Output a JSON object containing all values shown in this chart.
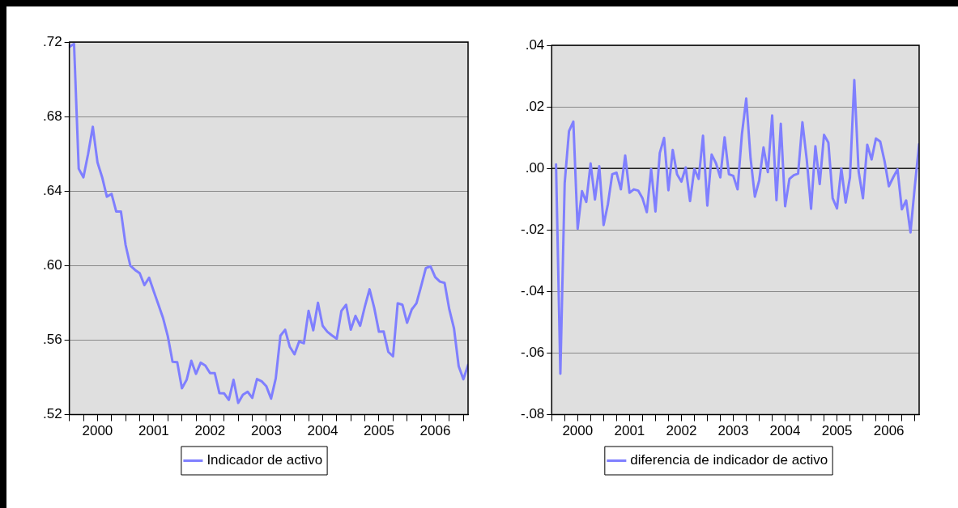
{
  "chart_data": [
    {
      "type": "line",
      "xlim": [
        "2000-01",
        "2007-02"
      ],
      "ylim": [
        0.52,
        0.72
      ],
      "yticks": [
        {
          "value": 0.52,
          "label": ".52"
        },
        {
          "value": 0.56,
          "label": ".56"
        },
        {
          "value": 0.6,
          "label": ".60"
        },
        {
          "value": 0.64,
          "label": ".64"
        },
        {
          "value": 0.68,
          "label": ".68"
        },
        {
          "value": 0.72,
          "label": ".72"
        }
      ],
      "xticks": [
        {
          "value": "2000-01",
          "label": null
        },
        {
          "value": "2000-04",
          "label": null
        },
        {
          "value": "2000-07",
          "label": "2000"
        },
        {
          "value": "2000-10",
          "label": null
        },
        {
          "value": "2001-01",
          "label": null
        },
        {
          "value": "2001-04",
          "label": null
        },
        {
          "value": "2001-07",
          "label": "2001"
        },
        {
          "value": "2001-10",
          "label": null
        },
        {
          "value": "2002-01",
          "label": null
        },
        {
          "value": "2002-04",
          "label": null
        },
        {
          "value": "2002-07",
          "label": "2002"
        },
        {
          "value": "2002-10",
          "label": null
        },
        {
          "value": "2003-01",
          "label": null
        },
        {
          "value": "2003-04",
          "label": null
        },
        {
          "value": "2003-07",
          "label": "2003"
        },
        {
          "value": "2003-10",
          "label": null
        },
        {
          "value": "2004-01",
          "label": null
        },
        {
          "value": "2004-04",
          "label": null
        },
        {
          "value": "2004-07",
          "label": "2004"
        },
        {
          "value": "2004-10",
          "label": null
        },
        {
          "value": "2005-01",
          "label": null
        },
        {
          "value": "2005-04",
          "label": null
        },
        {
          "value": "2005-07",
          "label": "2005"
        },
        {
          "value": "2005-10",
          "label": null
        },
        {
          "value": "2006-01",
          "label": null
        },
        {
          "value": "2006-04",
          "label": null
        },
        {
          "value": "2006-07",
          "label": "2006"
        },
        {
          "value": "2006-10",
          "label": null
        },
        {
          "value": "2007-01",
          "label": null
        }
      ],
      "grid": "y",
      "legend": "bottom",
      "marker": "none",
      "line_style": "solid",
      "series": [
        {
          "name": "Indicador de activo",
          "color": "#7f7fff",
          "x": [
            "2000-01",
            "2000-02",
            "2000-03",
            "2000-04",
            "2000-05",
            "2000-06",
            "2000-07",
            "2000-08",
            "2000-09",
            "2000-10",
            "2000-11",
            "2000-12",
            "2001-01",
            "2001-02",
            "2001-03",
            "2001-04",
            "2001-05",
            "2001-06",
            "2001-07",
            "2001-08",
            "2001-09",
            "2001-10",
            "2001-11",
            "2001-12",
            "2002-01",
            "2002-02",
            "2002-03",
            "2002-04",
            "2002-05",
            "2002-06",
            "2002-07",
            "2002-08",
            "2002-09",
            "2002-10",
            "2002-11",
            "2002-12",
            "2003-01",
            "2003-02",
            "2003-03",
            "2003-04",
            "2003-05",
            "2003-06",
            "2003-07",
            "2003-08",
            "2003-09",
            "2003-10",
            "2003-11",
            "2003-12",
            "2004-01",
            "2004-02",
            "2004-03",
            "2004-04",
            "2004-05",
            "2004-06",
            "2004-07",
            "2004-08",
            "2004-09",
            "2004-10",
            "2004-11",
            "2004-12",
            "2005-01",
            "2005-02",
            "2005-03",
            "2005-04",
            "2005-05",
            "2005-06",
            "2005-07",
            "2005-08",
            "2005-09",
            "2005-10",
            "2005-11",
            "2005-12",
            "2006-01",
            "2006-02",
            "2006-03",
            "2006-04",
            "2006-05",
            "2006-06",
            "2006-07",
            "2006-08",
            "2006-09",
            "2006-10",
            "2006-11",
            "2006-12",
            "2007-01",
            "2007-02"
          ],
          "values": [
            0.7174,
            0.719,
            0.652,
            0.6474,
            0.66,
            0.6745,
            0.6554,
            0.6474,
            0.637,
            0.6385,
            0.629,
            0.629,
            0.611,
            0.6,
            0.5977,
            0.5959,
            0.5895,
            0.5935,
            0.5862,
            0.579,
            0.5717,
            0.562,
            0.5484,
            0.5482,
            0.5342,
            0.5387,
            0.5489,
            0.5419,
            0.5479,
            0.5463,
            0.5423,
            0.5423,
            0.5315,
            0.5314,
            0.5279,
            0.5387,
            0.5263,
            0.5307,
            0.5323,
            0.529,
            0.5391,
            0.5379,
            0.5352,
            0.5286,
            0.5394,
            0.5624,
            0.5656,
            0.5564,
            0.5524,
            0.5593,
            0.5583,
            0.5757,
            0.5653,
            0.5801,
            0.5677,
            0.5645,
            0.5625,
            0.5608,
            0.5757,
            0.579,
            0.5656,
            0.573,
            0.5677,
            0.5781,
            0.5873,
            0.5773,
            0.5645,
            0.5647,
            0.5537,
            0.5513,
            0.5798,
            0.579,
            0.5693,
            0.5765,
            0.5798,
            0.589,
            0.5987,
            0.5996,
            0.5938,
            0.5914,
            0.5907,
            0.5765,
            0.5663,
            0.546,
            0.539,
            0.5467
          ]
        }
      ]
    },
    {
      "type": "line",
      "xlim": [
        "2000-01",
        "2007-02"
      ],
      "ylim": [
        -0.08,
        0.04
      ],
      "yticks": [
        {
          "value": -0.08,
          "label": "-.08"
        },
        {
          "value": -0.06,
          "label": "-.06"
        },
        {
          "value": -0.04,
          "label": "-.04"
        },
        {
          "value": -0.02,
          "label": "-.02"
        },
        {
          "value": 0,
          "label": ".00"
        },
        {
          "value": 0.02,
          "label": ".02"
        },
        {
          "value": 0.04,
          "label": ".04"
        }
      ],
      "xticks": [
        {
          "value": "2000-01",
          "label": null
        },
        {
          "value": "2000-04",
          "label": null
        },
        {
          "value": "2000-07",
          "label": "2000"
        },
        {
          "value": "2000-10",
          "label": null
        },
        {
          "value": "2001-01",
          "label": null
        },
        {
          "value": "2001-04",
          "label": null
        },
        {
          "value": "2001-07",
          "label": "2001"
        },
        {
          "value": "2001-10",
          "label": null
        },
        {
          "value": "2002-01",
          "label": null
        },
        {
          "value": "2002-04",
          "label": null
        },
        {
          "value": "2002-07",
          "label": "2002"
        },
        {
          "value": "2002-10",
          "label": null
        },
        {
          "value": "2003-01",
          "label": null
        },
        {
          "value": "2003-04",
          "label": null
        },
        {
          "value": "2003-07",
          "label": "2003"
        },
        {
          "value": "2003-10",
          "label": null
        },
        {
          "value": "2004-01",
          "label": null
        },
        {
          "value": "2004-04",
          "label": null
        },
        {
          "value": "2004-07",
          "label": "2004"
        },
        {
          "value": "2004-10",
          "label": null
        },
        {
          "value": "2005-01",
          "label": null
        },
        {
          "value": "2005-04",
          "label": null
        },
        {
          "value": "2005-07",
          "label": "2005"
        },
        {
          "value": "2005-10",
          "label": null
        },
        {
          "value": "2006-01",
          "label": null
        },
        {
          "value": "2006-04",
          "label": null
        },
        {
          "value": "2006-07",
          "label": "2006"
        },
        {
          "value": "2006-10",
          "label": null
        },
        {
          "value": "2007-01",
          "label": null
        }
      ],
      "grid": "y",
      "legend": "bottom",
      "marker": "none",
      "line_style": "solid",
      "ref_lines": [
        {
          "axis": "y",
          "value": 0,
          "color": "#000000"
        }
      ],
      "series": [
        {
          "name": "diferencia de indicador de activo",
          "color": "#7f7fff",
          "x": [
            "2000-02",
            "2000-03",
            "2000-04",
            "2000-05",
            "2000-06",
            "2000-07",
            "2000-08",
            "2000-09",
            "2000-10",
            "2000-11",
            "2000-12",
            "2001-01",
            "2001-02",
            "2001-03",
            "2001-04",
            "2001-05",
            "2001-06",
            "2001-07",
            "2001-08",
            "2001-09",
            "2001-10",
            "2001-11",
            "2001-12",
            "2002-01",
            "2002-02",
            "2002-03",
            "2002-04",
            "2002-05",
            "2002-06",
            "2002-07",
            "2002-08",
            "2002-09",
            "2002-10",
            "2002-11",
            "2002-12",
            "2003-01",
            "2003-02",
            "2003-03",
            "2003-04",
            "2003-05",
            "2003-06",
            "2003-07",
            "2003-08",
            "2003-09",
            "2003-10",
            "2003-11",
            "2003-12",
            "2004-01",
            "2004-02",
            "2004-03",
            "2004-04",
            "2004-05",
            "2004-06",
            "2004-07",
            "2004-08",
            "2004-09",
            "2004-10",
            "2004-11",
            "2004-12",
            "2005-01",
            "2005-02",
            "2005-03",
            "2005-04",
            "2005-05",
            "2005-06",
            "2005-07",
            "2005-08",
            "2005-09",
            "2005-10",
            "2005-11",
            "2005-12",
            "2006-01",
            "2006-02",
            "2006-03",
            "2006-04",
            "2006-05",
            "2006-06",
            "2006-07",
            "2006-08",
            "2006-09",
            "2006-10",
            "2006-11",
            "2006-12",
            "2007-01",
            "2007-02"
          ],
          "values": [
            0.0013,
            -0.0667,
            -0.0048,
            0.0121,
            0.0152,
            -0.0196,
            -0.0074,
            -0.0109,
            0.0016,
            -0.0101,
            0.0007,
            -0.0184,
            -0.0116,
            -0.0019,
            -0.0014,
            -0.0068,
            0.0042,
            -0.0079,
            -0.0068,
            -0.0072,
            -0.0097,
            -0.0142,
            -0.0002,
            -0.014,
            0.005,
            0.0099,
            -0.0071,
            0.006,
            -0.0019,
            -0.0043,
            0.0003,
            -0.0106,
            -0.0002,
            -0.0034,
            0.0106,
            -0.0121,
            0.0045,
            0.0017,
            -0.0029,
            0.0101,
            -0.0019,
            -0.0024,
            -0.0068,
            0.0111,
            0.0227,
            0.0034,
            -0.0092,
            -0.0039,
            0.0068,
            -0.0012,
            0.0172,
            -0.0103,
            0.0145,
            -0.0123,
            -0.0034,
            -0.0022,
            -0.0017,
            0.015,
            0.0029,
            -0.0131,
            0.0072,
            -0.0051,
            0.0109,
            0.0084,
            -0.0097,
            -0.013,
            0.0,
            -0.0111,
            -0.0029,
            0.0287,
            -0.001,
            -0.0097,
            0.0077,
            0.0029,
            0.0097,
            0.0087,
            0.0024,
            -0.0058,
            -0.0029,
            -0.0003,
            -0.0133,
            -0.0104,
            -0.0208,
            -0.0058,
            0.0079
          ]
        }
      ]
    }
  ]
}
